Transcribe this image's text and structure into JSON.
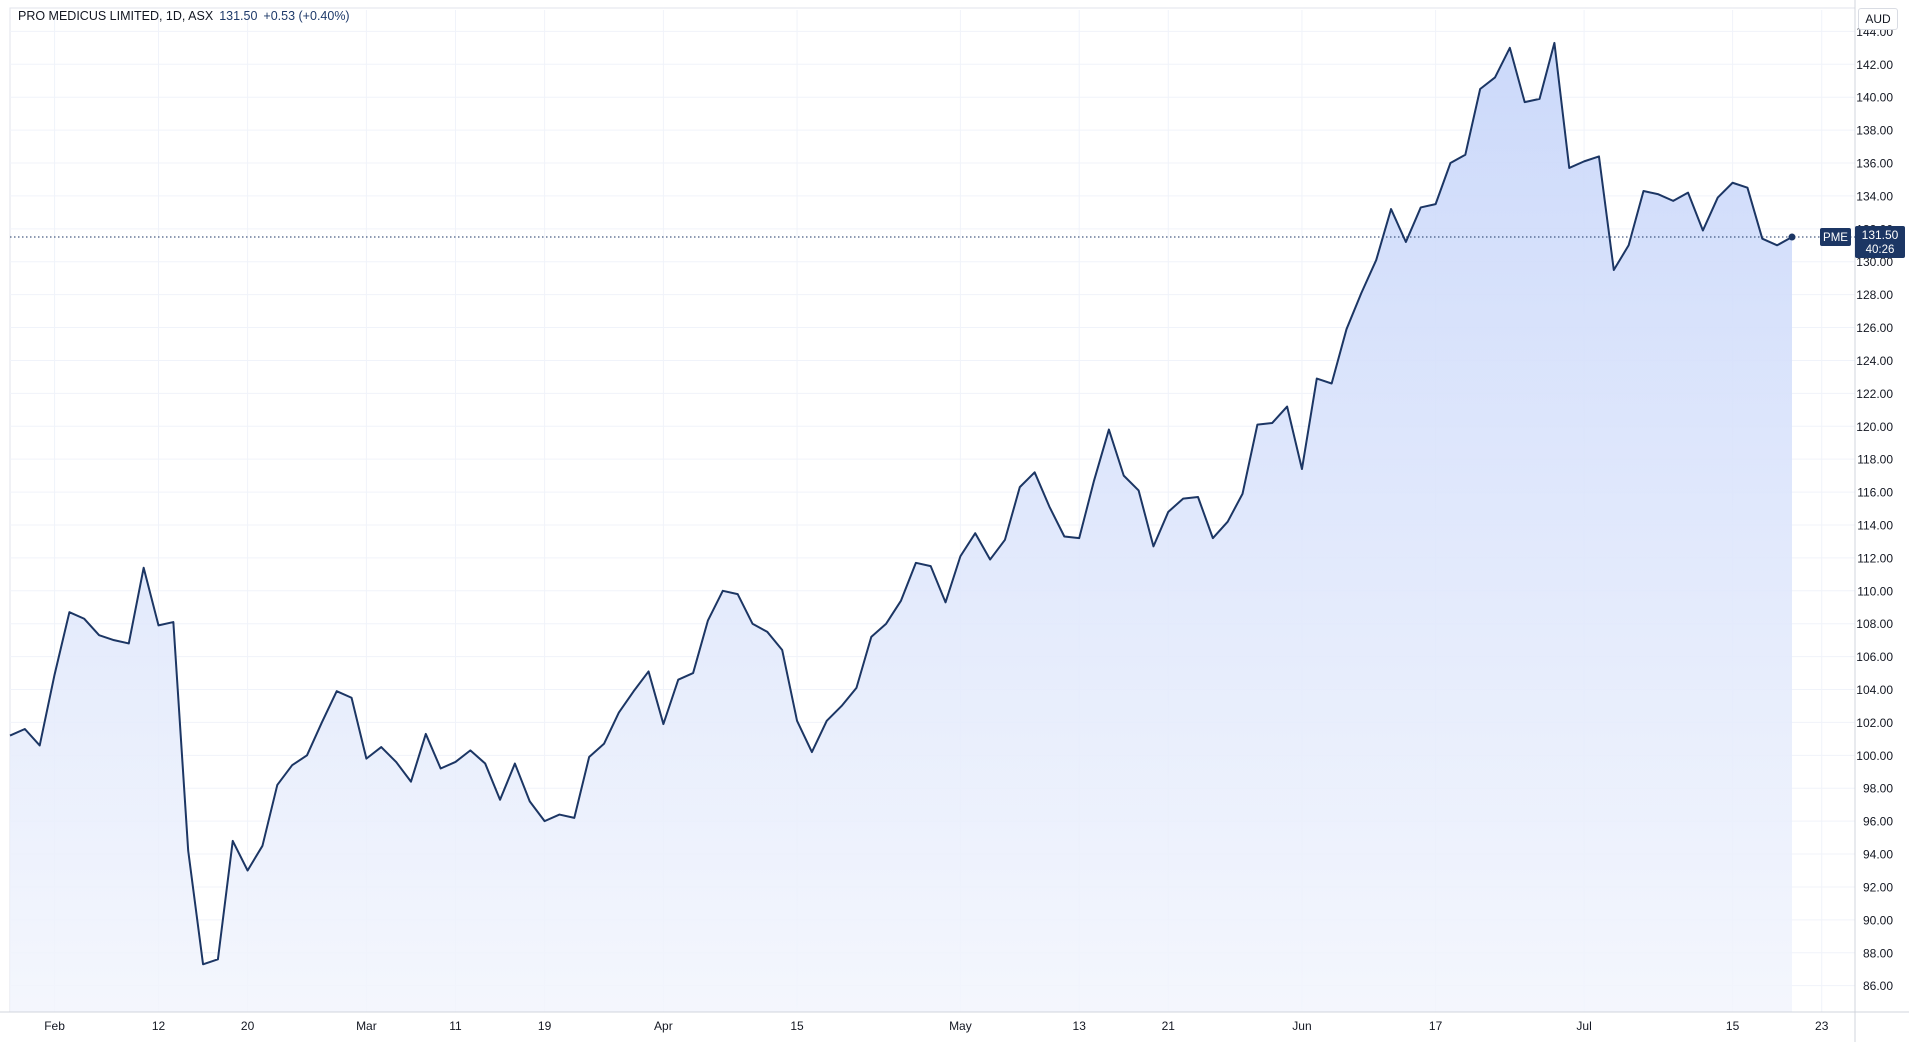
{
  "header": {
    "symbol_title": "PRO MEDICUS LIMITED, 1D, ASX",
    "last_price": "131.50",
    "change": "+0.53 (+0.40%)",
    "currency": "AUD"
  },
  "price_marker": {
    "ticker": "PME",
    "price": "131.50",
    "countdown": "40:26"
  },
  "colors": {
    "line": "#1c3664",
    "fill_top": "#c9d7fa",
    "fill_bottom": "#f2f5fd",
    "grid": "#f0f3fa",
    "axis_text": "#131722",
    "marker_bg": "#1c3664"
  },
  "chart_data": {
    "type": "area",
    "title": "PRO MEDICUS LIMITED, 1D, ASX",
    "xlabel": "",
    "ylabel": "",
    "grid": true,
    "ylim": [
      84.4,
      145.3
    ],
    "y_ticks": [
      "86.00",
      "88.00",
      "90.00",
      "92.00",
      "94.00",
      "96.00",
      "98.00",
      "100.00",
      "102.00",
      "104.00",
      "106.00",
      "108.00",
      "110.00",
      "112.00",
      "114.00",
      "116.00",
      "118.00",
      "120.00",
      "122.00",
      "124.00",
      "126.00",
      "128.00",
      "130.00",
      "132.00",
      "134.00",
      "136.00",
      "138.00",
      "140.00",
      "142.00",
      "144.00"
    ],
    "x_ticks": [
      {
        "label": "Feb",
        "index": 3
      },
      {
        "label": "12",
        "index": 10
      },
      {
        "label": "20",
        "index": 16
      },
      {
        "label": "Mar",
        "index": 24
      },
      {
        "label": "11",
        "index": 30
      },
      {
        "label": "19",
        "index": 36
      },
      {
        "label": "Apr",
        "index": 44
      },
      {
        "label": "15",
        "index": 53
      },
      {
        "label": "May",
        "index": 64
      },
      {
        "label": "13",
        "index": 72
      },
      {
        "label": "21",
        "index": 78
      },
      {
        "label": "Jun",
        "index": 87
      },
      {
        "label": "17",
        "index": 96
      },
      {
        "label": "Jul",
        "index": 106
      },
      {
        "label": "15",
        "index": 116
      },
      {
        "label": "23",
        "index": 122
      }
    ],
    "series": [
      {
        "values": [
          101.2,
          101.6,
          100.6,
          104.9,
          108.7,
          108.3,
          107.3,
          107.0,
          106.8,
          111.4,
          107.9,
          108.1,
          94.2,
          87.3,
          87.6,
          94.8,
          93.0,
          94.5,
          98.2,
          99.4,
          100.0,
          102.0,
          103.9,
          103.5,
          99.8,
          100.5,
          99.6,
          98.4,
          101.3,
          99.2,
          99.6,
          100.3,
          99.5,
          97.3,
          99.5,
          97.2,
          96.0,
          96.4,
          96.2,
          99.9,
          100.7,
          102.6,
          103.9,
          105.1,
          101.9,
          104.6,
          105.0,
          108.2,
          110.0,
          109.8,
          108.0,
          107.5,
          106.4,
          102.1,
          100.2,
          102.1,
          103.0,
          104.1,
          107.2,
          108.0,
          109.4,
          111.7,
          111.5,
          109.3,
          112.1,
          113.5,
          111.9,
          113.1,
          116.3,
          117.2,
          115.1,
          113.3,
          113.2,
          116.7,
          119.8,
          117.0,
          116.1,
          112.7,
          114.8,
          115.6,
          115.7,
          113.2,
          114.2,
          115.9,
          120.1,
          120.2,
          121.2,
          117.4,
          122.9,
          122.6,
          125.9,
          128.1,
          130.1,
          133.2,
          131.2,
          133.3,
          133.5,
          136.0,
          136.5,
          140.5,
          141.2,
          143.0,
          139.7,
          139.9,
          143.3,
          135.7,
          136.1,
          136.4,
          129.5,
          131.0,
          134.3,
          134.1,
          133.7,
          134.2,
          131.9,
          133.9,
          134.8,
          134.5,
          131.4,
          131.0,
          131.5
        ]
      }
    ]
  }
}
